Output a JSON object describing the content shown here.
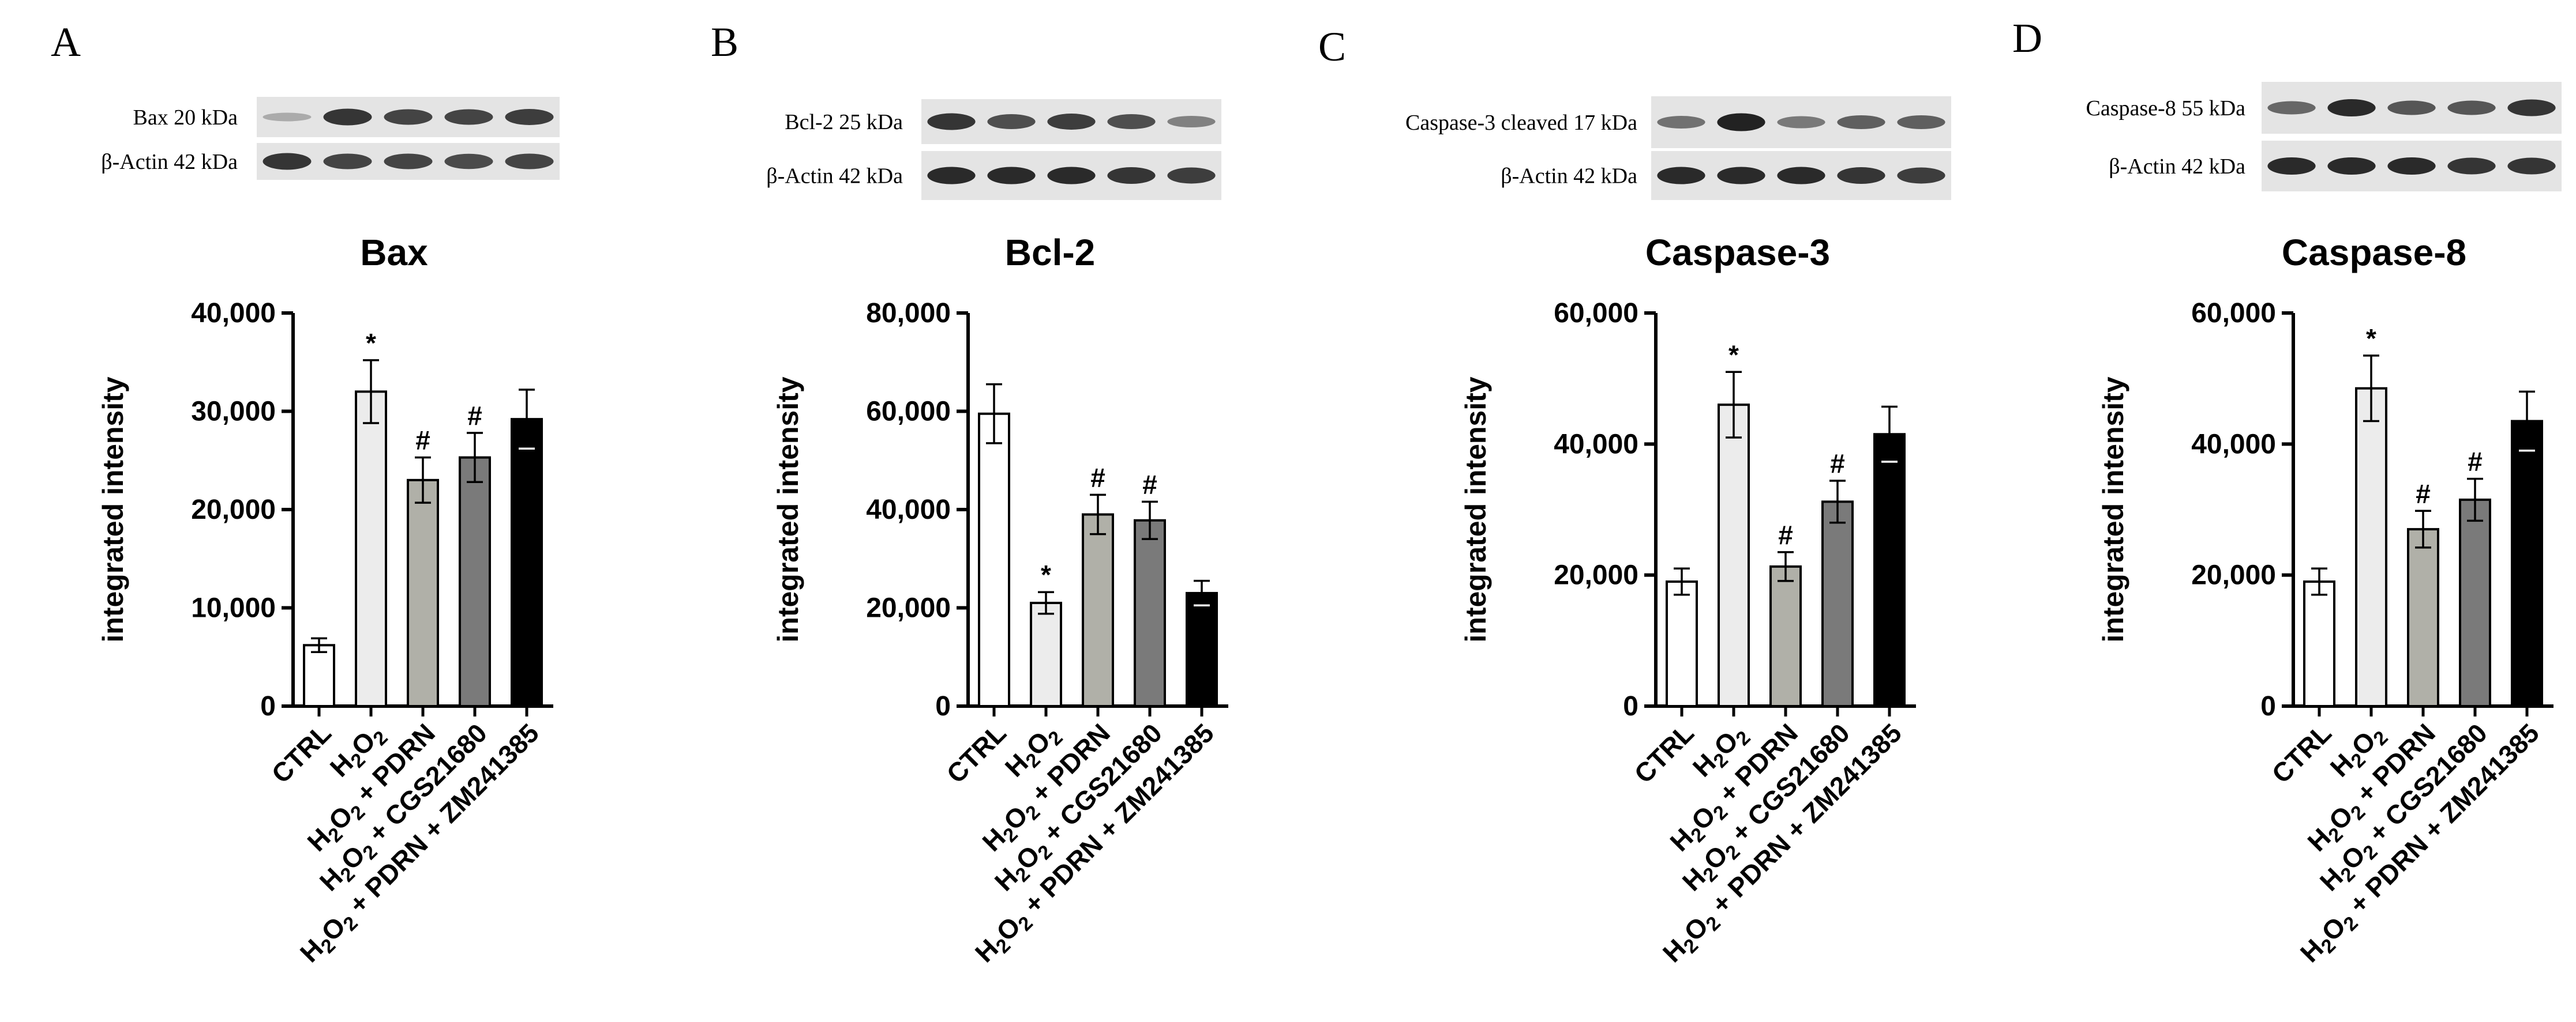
{
  "chart_data": [
    {
      "panel": "A",
      "type": "bar",
      "title": "Bax",
      "ylabel": "integrated intensity",
      "ylim": [
        0,
        40000
      ],
      "yticks": [
        "0",
        "10,000",
        "20,000",
        "30,000",
        "40,000"
      ],
      "categories": [
        "CTRL",
        "H2O2",
        "H2O2 + PDRN",
        "H2O2 + CGS21680",
        "H2O2 + PDRN + ZM241385"
      ],
      "values": [
        6200,
        32000,
        23000,
        25300,
        29200
      ],
      "errors": [
        700,
        3200,
        2300,
        2500,
        3000
      ],
      "significance": [
        "",
        "*",
        "#",
        "#",
        ""
      ],
      "blots": [
        {
          "label": "Bax 20 kDa",
          "bands": [
            0.15,
            0.85,
            0.75,
            0.75,
            0.8
          ]
        },
        {
          "label": "β-Actin 42 kDa",
          "bands": [
            0.85,
            0.75,
            0.75,
            0.72,
            0.75
          ]
        }
      ]
    },
    {
      "panel": "B",
      "type": "bar",
      "title": "Bcl-2",
      "ylabel": "integrated intensity",
      "ylim": [
        0,
        80000
      ],
      "yticks": [
        "0",
        "20,000",
        "40,000",
        "60,000",
        "80,000"
      ],
      "categories": [
        "CTRL",
        "H2O2",
        "H2O2 + PDRN",
        "H2O2 + CGS21680",
        "H2O2 + PDRN + ZM241385"
      ],
      "values": [
        59500,
        21000,
        39000,
        37800,
        23000
      ],
      "errors": [
        6000,
        2200,
        4000,
        3800,
        2500
      ],
      "significance": [
        "",
        "*",
        "#",
        "#",
        ""
      ],
      "blots": [
        {
          "label": "Bcl-2 25 kDa",
          "bands": [
            0.85,
            0.7,
            0.8,
            0.7,
            0.4
          ]
        },
        {
          "label": "β-Actin 42 kDa",
          "bands": [
            0.9,
            0.9,
            0.9,
            0.85,
            0.8
          ]
        }
      ]
    },
    {
      "panel": "C",
      "type": "bar",
      "title": "Caspase-3",
      "ylabel": "integrated intensity",
      "ylim": [
        0,
        60000
      ],
      "yticks": [
        "0",
        "20,000",
        "40,000",
        "60,000"
      ],
      "categories": [
        "CTRL",
        "H2O2",
        "H2O2 + PDRN",
        "H2O2 + CGS21680",
        "H2O2 + PDRN + ZM241385"
      ],
      "values": [
        19000,
        46000,
        21300,
        31200,
        41500
      ],
      "errors": [
        2000,
        5000,
        2200,
        3200,
        4200
      ],
      "significance": [
        "",
        "*",
        "#",
        "#",
        ""
      ],
      "blots": [
        {
          "label": "Caspase-3 cleaved 17 kDa",
          "bands": [
            0.5,
            0.95,
            0.45,
            0.6,
            0.6
          ]
        },
        {
          "label": "β-Actin 42 kDa",
          "bands": [
            0.9,
            0.9,
            0.9,
            0.85,
            0.8
          ]
        }
      ]
    },
    {
      "panel": "D",
      "type": "bar",
      "title": "Caspase-8",
      "ylabel": "integrated intensity",
      "ylim": [
        0,
        60000
      ],
      "yticks": [
        "0",
        "20,000",
        "40,000",
        "60,000"
      ],
      "categories": [
        "CTRL",
        "H2O2",
        "H2O2 + PDRN",
        "H2O2 + CGS21680",
        "H2O2 + PDRN + ZM241385"
      ],
      "values": [
        19000,
        48500,
        27000,
        31500,
        43500
      ],
      "errors": [
        2000,
        5000,
        2800,
        3200,
        4500
      ],
      "significance": [
        "",
        "*",
        "#",
        "#",
        ""
      ],
      "blots": [
        {
          "label": "Caspase-8 55 kDa",
          "bands": [
            0.55,
            0.9,
            0.65,
            0.65,
            0.85
          ]
        },
        {
          "label": "β-Actin 42 kDa",
          "bands": [
            0.9,
            0.9,
            0.9,
            0.85,
            0.85
          ]
        }
      ]
    }
  ],
  "colors": {
    "bar_fills": [
      "#ffffff",
      "#ececec",
      "#b0b0a8",
      "#7a7a7a",
      "#000000"
    ],
    "stroke": "#000000",
    "blot_bg": "#e4e4e4",
    "band": "#1a1a1a"
  }
}
